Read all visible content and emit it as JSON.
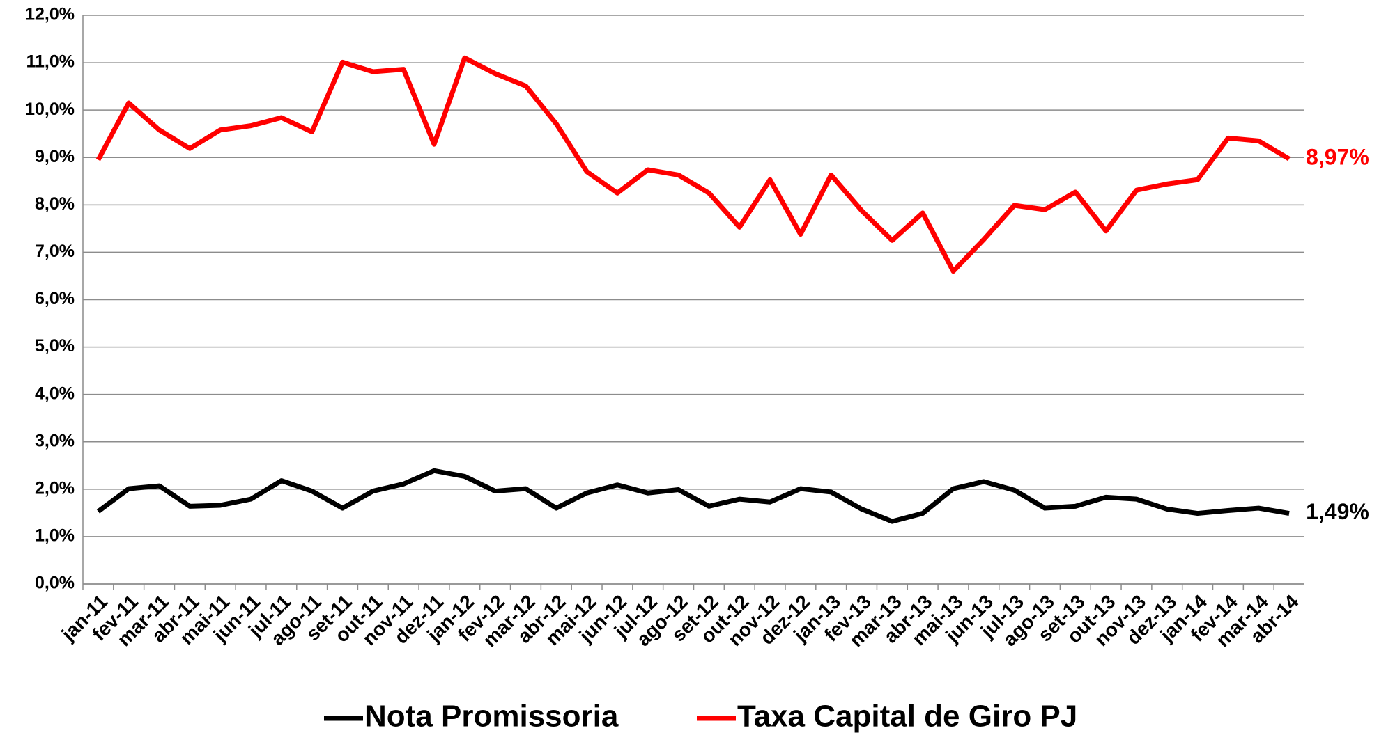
{
  "chart_data": {
    "type": "line",
    "categories": [
      "jan-11",
      "fev-11",
      "mar-11",
      "abr-11",
      "mai-11",
      "jun-11",
      "jul-11",
      "ago-11",
      "set-11",
      "out-11",
      "nov-11",
      "dez-11",
      "jan-12",
      "fev-12",
      "mar-12",
      "abr-12",
      "mai-12",
      "jun-12",
      "jul-12",
      "ago-12",
      "set-12",
      "out-12",
      "nov-12",
      "dez-12",
      "jan-13",
      "fev-13",
      "mar-13",
      "abr-13",
      "mai-13",
      "jun-13",
      "jul-13",
      "ago-13",
      "set-13",
      "out-13",
      "nov-13",
      "dez-13",
      "jan-14",
      "fev-14",
      "mar-14",
      "abr-14"
    ],
    "series": [
      {
        "name": "Nota Promissoria",
        "color": "#000000",
        "values": [
          1.53,
          2.01,
          2.07,
          1.64,
          1.66,
          1.79,
          2.18,
          1.96,
          1.6,
          1.96,
          2.11,
          2.39,
          2.27,
          1.96,
          2.01,
          1.6,
          1.92,
          2.09,
          1.92,
          1.99,
          1.64,
          1.79,
          1.73,
          2.01,
          1.94,
          1.58,
          1.32,
          1.49,
          2.01,
          2.16,
          1.98,
          1.6,
          1.64,
          1.83,
          1.79,
          1.58,
          1.49,
          1.55,
          1.6,
          1.49
        ],
        "value_labels": [
          null,
          null,
          null,
          null,
          null,
          null,
          null,
          null,
          null,
          null,
          null,
          null,
          null,
          null,
          null,
          null,
          null,
          null,
          null,
          null,
          null,
          null,
          null,
          null,
          null,
          null,
          null,
          null,
          null,
          null,
          null,
          null,
          null,
          null,
          null,
          null,
          null,
          null,
          null,
          "1,49%"
        ]
      },
      {
        "name": "Taxa Capital de Giro PJ",
        "color": "#ff0000",
        "values": [
          8.95,
          10.15,
          9.58,
          9.19,
          9.58,
          9.67,
          9.84,
          9.54,
          11.01,
          10.81,
          10.86,
          9.28,
          11.1,
          10.77,
          10.51,
          9.71,
          8.7,
          8.25,
          8.74,
          8.63,
          8.25,
          7.53,
          8.53,
          7.38,
          8.63,
          7.88,
          7.25,
          7.83,
          6.6,
          7.27,
          7.99,
          7.9,
          8.27,
          7.45,
          8.31,
          8.44,
          8.53,
          9.41,
          9.35,
          8.97
        ],
        "value_labels": [
          null,
          null,
          null,
          null,
          null,
          null,
          null,
          null,
          null,
          null,
          null,
          null,
          null,
          null,
          null,
          null,
          null,
          null,
          null,
          null,
          null,
          null,
          null,
          null,
          null,
          null,
          null,
          null,
          null,
          null,
          null,
          null,
          null,
          null,
          null,
          null,
          null,
          null,
          null,
          "8,97%"
        ]
      }
    ],
    "ylim": [
      0,
      12
    ],
    "yticks": [
      {
        "value": 0,
        "label": "0,0%"
      },
      {
        "value": 1,
        "label": "1,0%"
      },
      {
        "value": 2,
        "label": "2,0%"
      },
      {
        "value": 3,
        "label": "3,0%"
      },
      {
        "value": 4,
        "label": "4,0%"
      },
      {
        "value": 5,
        "label": "5,0%"
      },
      {
        "value": 6,
        "label": "6,0%"
      },
      {
        "value": 7,
        "label": "7,0%"
      },
      {
        "value": 8,
        "label": "8,0%"
      },
      {
        "value": 9,
        "label": "9,0%"
      },
      {
        "value": 10,
        "label": "10,0%"
      },
      {
        "value": 11,
        "label": "11,0%"
      },
      {
        "value": 12,
        "label": "12,0%"
      }
    ],
    "grid": true,
    "legend": "bottom"
  }
}
